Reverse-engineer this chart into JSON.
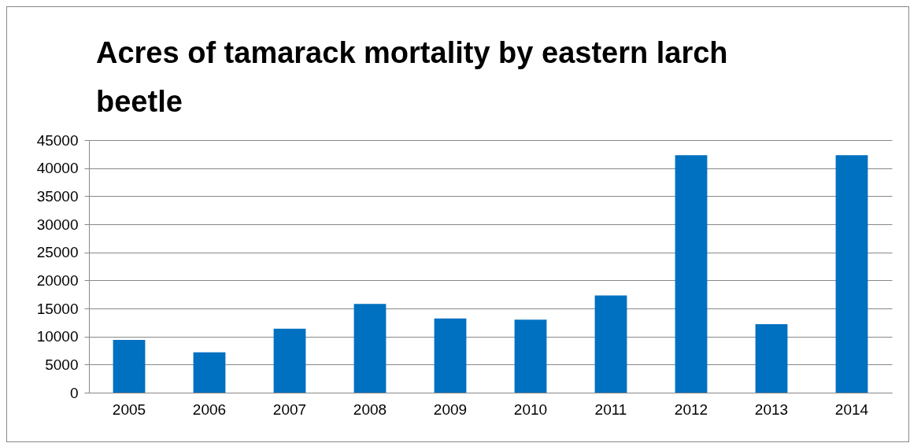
{
  "chart_data": {
    "type": "bar",
    "title": "Acres of tamarack mortality by eastern larch beetle",
    "categories": [
      "2005",
      "2006",
      "2007",
      "2008",
      "2009",
      "2010",
      "2011",
      "2012",
      "2013",
      "2014"
    ],
    "values": [
      9400,
      7200,
      11400,
      15800,
      13200,
      13000,
      17300,
      42300,
      12200,
      42300
    ],
    "color": "#0070c0",
    "ylim": [
      0,
      45000
    ],
    "yticks": [
      0,
      5000,
      10000,
      15000,
      20000,
      25000,
      30000,
      35000,
      40000,
      45000
    ],
    "grid": "y"
  }
}
